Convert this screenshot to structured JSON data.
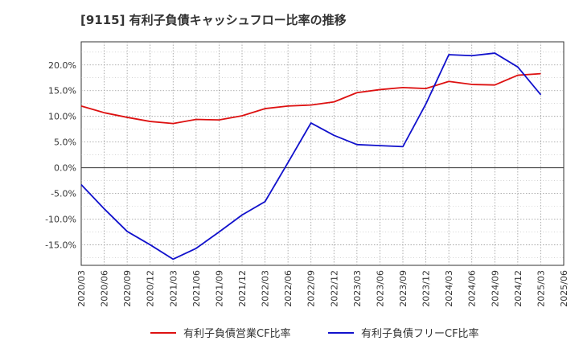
{
  "chart_data": {
    "type": "line",
    "title": "[9115]  有利子負債キャッシュフロー比率の推移",
    "xlabel": "",
    "ylabel": "",
    "x": [
      "2020/03",
      "2020/06",
      "2020/09",
      "2020/12",
      "2021/03",
      "2021/06",
      "2021/09",
      "2021/12",
      "2022/03",
      "2022/06",
      "2022/09",
      "2022/12",
      "2023/03",
      "2023/06",
      "2023/09",
      "2023/12",
      "2024/03",
      "2024/06",
      "2024/09",
      "2024/12",
      "2025/03",
      "2025/06"
    ],
    "ylim": [
      -19,
      24.5
    ],
    "yticks": [
      -15,
      -10,
      -5,
      0,
      5,
      10,
      15,
      20
    ],
    "ytick_labels": [
      "-15.0%",
      "-10.0%",
      "-5.0%",
      "0.0%",
      "5.0%",
      "10.0%",
      "15.0%",
      "20.0%"
    ],
    "grid": true,
    "legend_position": "bottom",
    "series": [
      {
        "name": "有利子負債営業CF比率",
        "color": "#dd1111",
        "values": [
          12.0,
          10.7,
          9.8,
          9.0,
          8.6,
          9.4,
          9.3,
          10.1,
          11.5,
          12.0,
          12.2,
          12.8,
          14.6,
          15.2,
          15.6,
          15.4,
          16.8,
          16.2,
          16.1,
          18.0,
          18.3,
          null
        ]
      },
      {
        "name": "有利子負債フリーCF比率",
        "color": "#1111cc",
        "values": [
          -3.3,
          -8.0,
          -12.4,
          -15.0,
          -17.8,
          -15.7,
          -12.5,
          -9.2,
          -6.6,
          1.0,
          8.7,
          6.3,
          4.5,
          4.3,
          4.1,
          12.4,
          22.0,
          21.8,
          22.3,
          19.6,
          14.2,
          null
        ]
      }
    ]
  }
}
